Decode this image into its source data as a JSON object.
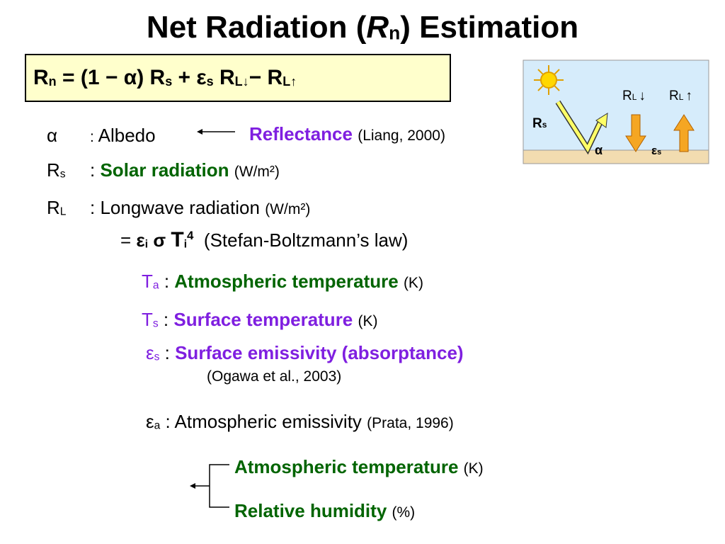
{
  "title": {
    "pre": "Net Radiation (",
    "symbol": "R",
    "sub": "n",
    "post": ") Estimation"
  },
  "equation": [
    "R",
    "n",
    " = (1 − ",
    "α",
    ") R",
    "s",
    " + ",
    "ε",
    "s",
    " R",
    "L↓",
    "− R",
    "L↑"
  ],
  "diagram": {
    "rl_down": [
      "R",
      "L",
      "↓"
    ],
    "rl_up": [
      "R",
      "L",
      "↑"
    ],
    "rs": [
      "R",
      "s"
    ],
    "alpha": "α",
    "eps": [
      "ε",
      "s"
    ]
  },
  "albedo": {
    "symbol": "α",
    "colon": ":",
    "label": "Albedo",
    "term": "Reflectance",
    "ref": "(Liang, 2000)"
  },
  "solar": {
    "symbol": [
      "R",
      "s"
    ],
    "colon": ":",
    "label": "Solar radiation",
    "unit": "(W/m²)"
  },
  "longwave": {
    "symbol": [
      "R",
      "L"
    ],
    "label": ": Longwave radiation",
    "unit": "(W/m²)"
  },
  "formula": {
    "parts": [
      "= ",
      "ε",
      "i",
      "σ",
      "T",
      "i",
      "4"
    ],
    "law": "(Stefan-Boltzmann’s law)"
  },
  "ta": {
    "symbol": [
      "T",
      "a"
    ],
    "colon": ":",
    "label": "Atmospheric temperature",
    "unit": "(K)"
  },
  "ts": {
    "symbol": [
      "T",
      "s"
    ],
    "colon": ":",
    "label": "Surface temperature",
    "unit": "(K)"
  },
  "es": {
    "symbol": [
      "ε",
      "s"
    ],
    "colon": ":",
    "label": "Surface emissivity (absorptance)",
    "ref": "(Ogawa et al., 2003)"
  },
  "ea": {
    "symbol": [
      "ε",
      "a"
    ],
    "label": ": Atmospheric emissivity",
    "ref": "(Prata, 1996)"
  },
  "inputs": [
    {
      "label": "Atmospheric temperature",
      "unit": "(K)"
    },
    {
      "label": "Relative humidity",
      "unit": "(%)"
    }
  ]
}
